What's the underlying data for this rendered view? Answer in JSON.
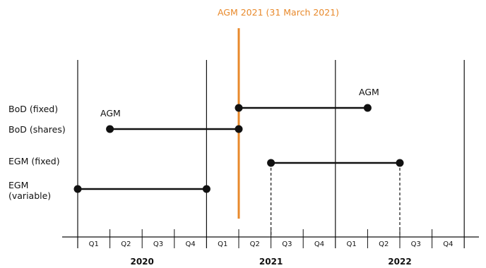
{
  "title": "AGM 2021 (31 March 2021)",
  "colors": {
    "accent": "#E8892B",
    "ink": "#111111"
  },
  "rows": [
    {
      "label": "BoD (fixed)"
    },
    {
      "label": "BoD (shares)"
    },
    {
      "label": "EGM (fixed)"
    },
    {
      "label": "EGM\n(variable)"
    }
  ],
  "annotations": [
    {
      "text": "AGM"
    },
    {
      "text": "AGM"
    }
  ],
  "quarters": [
    "Q1",
    "Q2",
    "Q3",
    "Q4",
    "Q1",
    "Q2",
    "Q3",
    "Q4",
    "Q1",
    "Q2",
    "Q3",
    "Q4"
  ],
  "years": [
    "2020",
    "2021",
    "2022"
  ],
  "segments": [
    {
      "row": 0,
      "start": 5.0,
      "end": 9.0,
      "dashed_drop": false
    },
    {
      "row": 1,
      "start": 1.0,
      "end": 5.0,
      "dashed_drop": false
    },
    {
      "row": 2,
      "start": 6.0,
      "end": 10.0,
      "dashed_drop": true
    },
    {
      "row": 3,
      "start": 0.0,
      "end": 4.0,
      "dashed_drop": false
    }
  ],
  "agm_marker_quarter": 5.0
}
